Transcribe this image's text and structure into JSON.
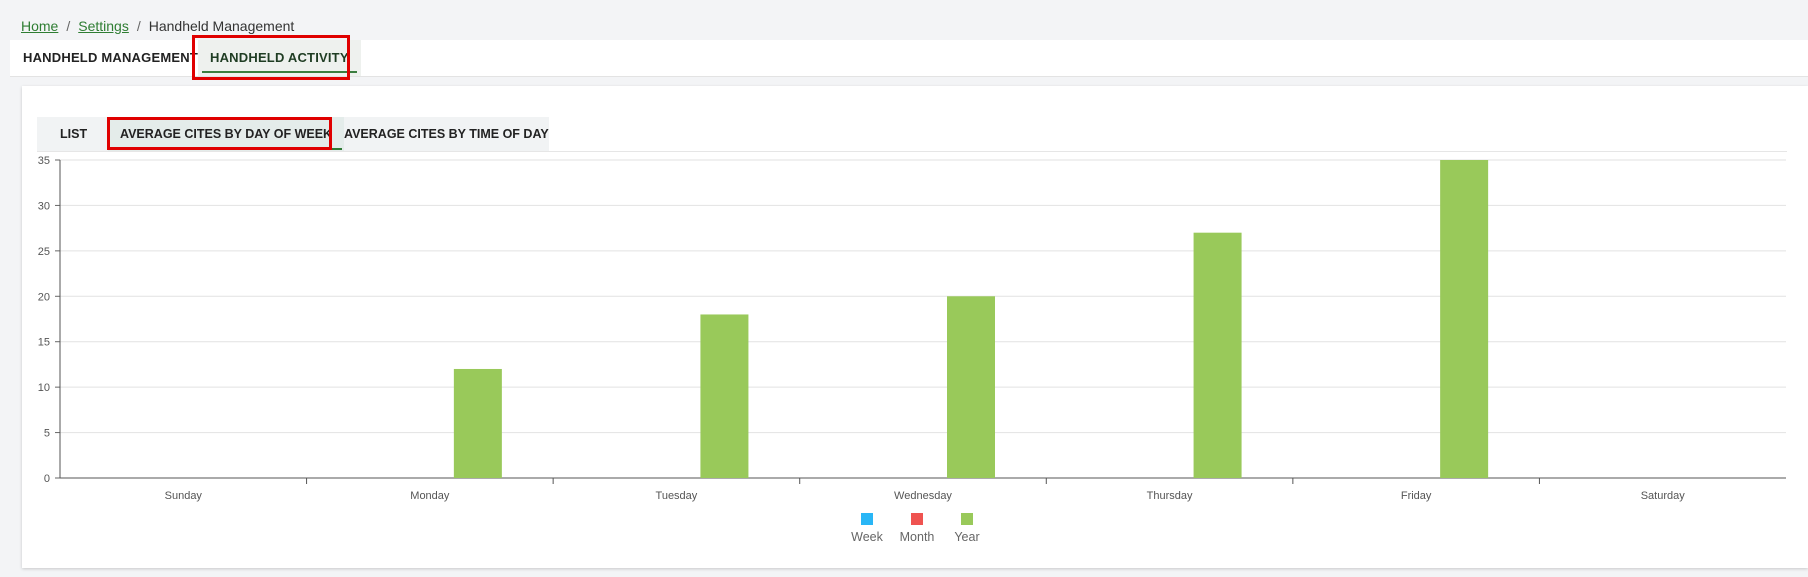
{
  "breadcrumb": {
    "home": "Home",
    "settings": "Settings",
    "current": "Handheld Management",
    "separator": "/"
  },
  "top_tabs": {
    "management": "HANDHELD MANAGEMENT",
    "activity": "HANDHELD ACTIVITY"
  },
  "sub_tabs": {
    "list": "LIST",
    "day_of_week": "AVERAGE CITES BY DAY OF WEEK",
    "time_of_day": "AVERAGE CITES BY TIME OF DAY"
  },
  "colors": {
    "accent_green": "#2e7d32",
    "highlight_red": "#e00000",
    "week": "#29b6f6",
    "month": "#ef5350",
    "year": "#99c95a"
  },
  "chart_data": {
    "type": "bar",
    "categories": [
      "Sunday",
      "Monday",
      "Tuesday",
      "Wednesday",
      "Thursday",
      "Friday",
      "Saturday"
    ],
    "series": [
      {
        "name": "Week",
        "color": "#29b6f6",
        "values": [
          0,
          0,
          0,
          0,
          0,
          0,
          0
        ]
      },
      {
        "name": "Month",
        "color": "#ef5350",
        "values": [
          0,
          0,
          0,
          0,
          0,
          0,
          0
        ]
      },
      {
        "name": "Year",
        "color": "#99c95a",
        "values": [
          0,
          12,
          18,
          20,
          27,
          35,
          0
        ]
      }
    ],
    "yticks": [
      "0",
      "5",
      "10",
      "15",
      "20",
      "25",
      "30",
      "35"
    ],
    "ylim": [
      0,
      35
    ],
    "grid": true,
    "legend_position": "bottom"
  }
}
